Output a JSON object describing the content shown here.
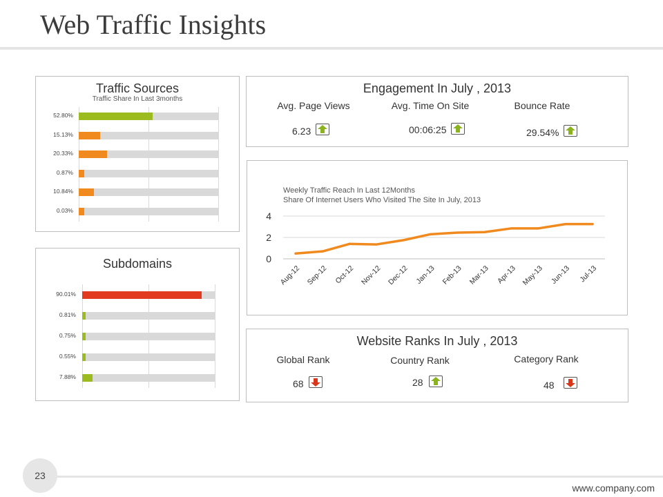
{
  "page": {
    "title": "Web Traffic Insights",
    "number": "23",
    "url": "www.company.com"
  },
  "colors": {
    "green": "#9bbb1f",
    "orange": "#f08a1e",
    "red": "#e13a1e",
    "track": "#d9d9d9"
  },
  "traffic_sources": {
    "title": "Traffic Sources",
    "subtitle": "Traffic Share In Last 3months",
    "bars": [
      {
        "label": "52.80%",
        "value": 52.8,
        "color": "green"
      },
      {
        "label": "15.13%",
        "value": 15.13,
        "color": "orange"
      },
      {
        "label": "20.33%",
        "value": 20.33,
        "color": "orange"
      },
      {
        "label": "0.87%",
        "value": 0.87,
        "color": "orange"
      },
      {
        "label": "10.84%",
        "value": 10.84,
        "color": "orange"
      },
      {
        "label": "0.03%",
        "value": 0.03,
        "color": "orange"
      }
    ]
  },
  "subdomains": {
    "title": "Subdomains",
    "bars": [
      {
        "label": "90.01%",
        "value": 90.01,
        "color": "red"
      },
      {
        "label": "0.81%",
        "value": 0.81,
        "color": "green"
      },
      {
        "label": "0.75%",
        "value": 0.75,
        "color": "green"
      },
      {
        "label": "0.55%",
        "value": 0.55,
        "color": "green"
      },
      {
        "label": "7.88%",
        "value": 7.88,
        "color": "green"
      }
    ]
  },
  "engagement": {
    "title": "Engagement In July , 2013",
    "metrics": [
      {
        "label": "Avg. Page Views",
        "value": "6.23",
        "trend": "up"
      },
      {
        "label": "Avg. Time On Site",
        "value": "00:06:25",
        "trend": "up"
      },
      {
        "label": "Bounce Rate",
        "value": "29.54%",
        "trend": "up"
      }
    ]
  },
  "ranks": {
    "title": "Website Ranks In July , 2013",
    "metrics": [
      {
        "label": "Global Rank",
        "value": "68",
        "trend": "down"
      },
      {
        "label": "Country Rank",
        "value": "28",
        "trend": "up"
      },
      {
        "label": "Category Rank",
        "value": "48",
        "trend": "down"
      }
    ]
  },
  "chart_data": {
    "type": "line",
    "title": "Weekly Traffic Reach In Last 12Months",
    "subtitle": "Share Of Internet Users Who Visited The Site In July, 2013",
    "categories": [
      "Aug-12",
      "Sep-12",
      "Oct-12",
      "Nov-12",
      "Dec-12",
      "Jan-13",
      "Feb-13",
      "Mar-13",
      "Apr-13",
      "May-13",
      "Jun-13",
      "Jul-13"
    ],
    "series": [
      {
        "values": [
          0.5,
          0.7,
          1.4,
          1.35,
          1.75,
          2.3,
          2.45,
          2.5,
          2.85,
          2.85,
          3.25,
          3.25
        ]
      }
    ],
    "ylim": [
      0,
      4
    ],
    "yticks": [
      0,
      2,
      4
    ],
    "grid": true,
    "color": "#f08a1e"
  }
}
